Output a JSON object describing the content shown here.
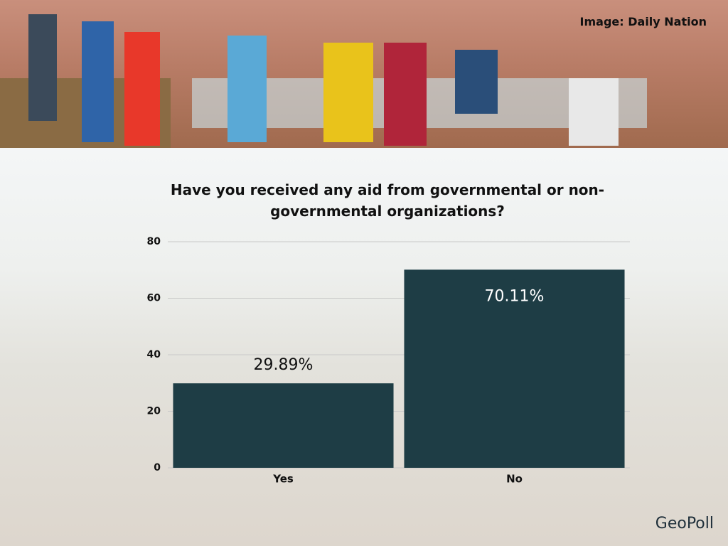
{
  "photo_credit": "Image: Daily Nation",
  "logo": "GeoPoll",
  "chart_data": {
    "type": "bar",
    "title": "Have you received any aid from governmental or non-governmental organizations?",
    "categories": [
      "Yes",
      "No"
    ],
    "values": [
      29.89,
      70.11
    ],
    "value_labels": [
      "29.89%",
      "70.11%"
    ],
    "color": "#1e3d45",
    "ylim": [
      0,
      80
    ],
    "yticks": [
      0,
      20,
      40,
      60,
      80
    ],
    "grid": true
  }
}
